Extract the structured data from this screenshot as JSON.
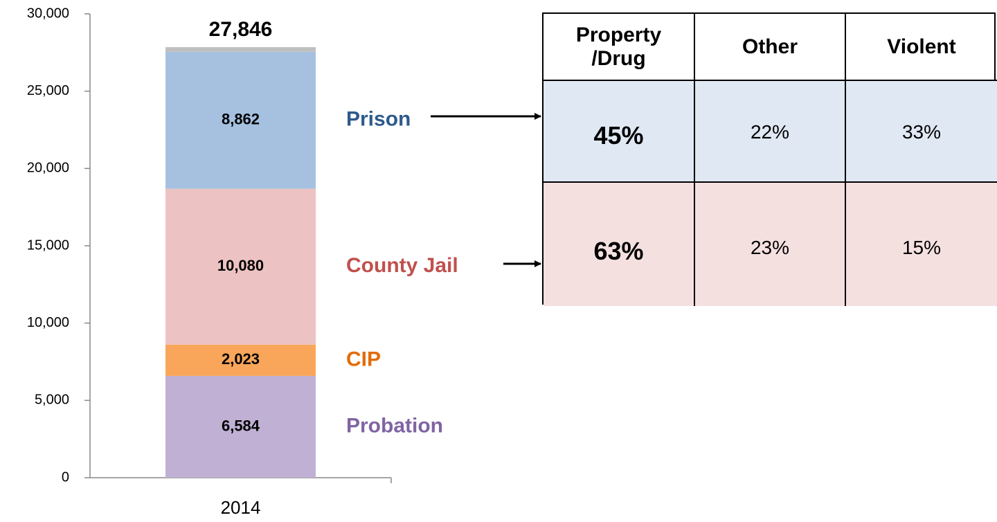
{
  "chart_data": {
    "type": "stacked_bar",
    "categories": [
      "2014"
    ],
    "series": [
      {
        "name": "Probation",
        "color": "#c0b1d4",
        "label_color": "#8064a2",
        "values": [
          6584
        ],
        "value_labels": [
          "6,584"
        ]
      },
      {
        "name": "CIP",
        "color": "#f9a65a",
        "label_color": "#e36c0a",
        "values": [
          2023
        ],
        "value_labels": [
          "2,023"
        ]
      },
      {
        "name": "County Jail",
        "color": "#ecc3c2",
        "label_color": "#c0504d",
        "values": [
          10080
        ],
        "value_labels": [
          "10,080"
        ]
      },
      {
        "name": "Prison",
        "color": "#a6c1e0",
        "label_color": "#2e5a8c",
        "values": [
          8862
        ],
        "value_labels": [
          "8,862"
        ]
      },
      {
        "color": "#bfbfbf",
        "values": [
          297
        ]
      }
    ],
    "totals": [
      27846
    ],
    "total_labels": [
      "27,846"
    ],
    "ylim": [
      0,
      30000
    ],
    "yticks": [
      0,
      {
        "value": 5000,
        "label": "5,000"
      },
      {
        "value": 10000,
        "label": "10,000"
      },
      {
        "value": 15000,
        "label": "15,000"
      },
      {
        "value": 20000,
        "label": "20,000"
      },
      {
        "value": 25000,
        "label": "25,000"
      },
      {
        "value": 30000,
        "label": "30,000"
      }
    ],
    "grid": false
  },
  "table": {
    "header": [
      "Property /Drug",
      "Other",
      "Violent"
    ],
    "rows": [
      [
        "45%",
        "22%",
        "33%"
      ],
      [
        "63%",
        "23%",
        "15%"
      ]
    ]
  }
}
